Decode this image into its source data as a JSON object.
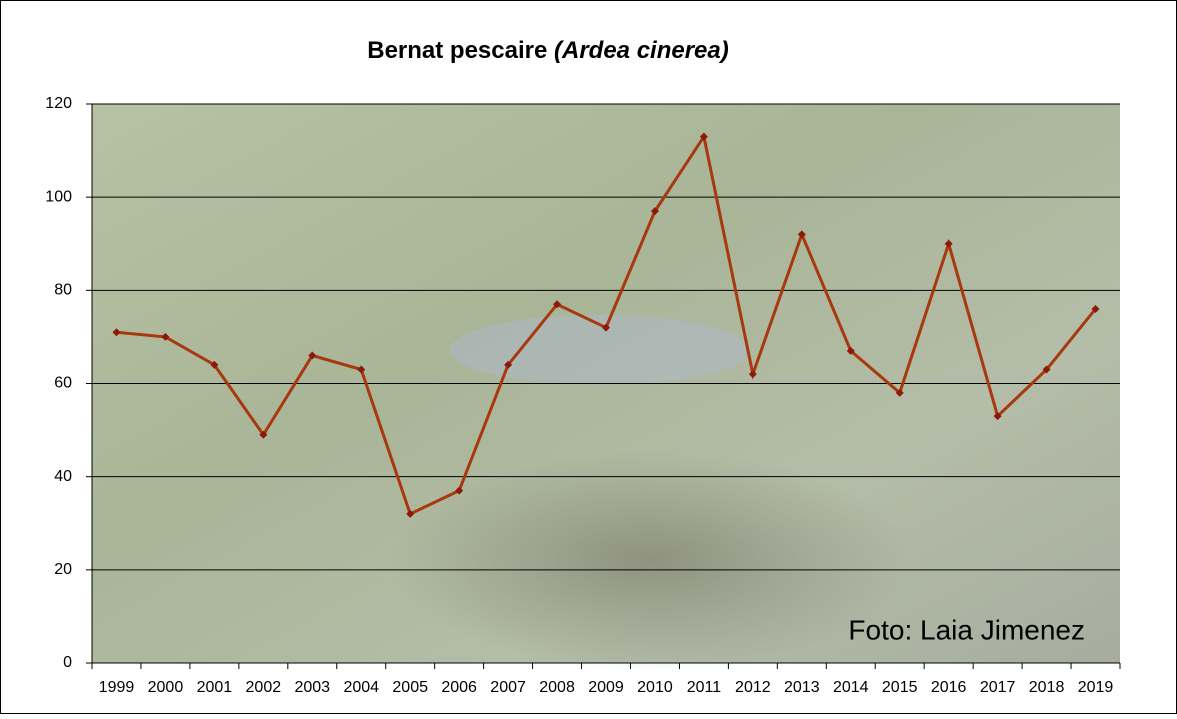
{
  "chart_data": {
    "type": "line",
    "title": "Bernat pescaire",
    "title_species": "(Ardea cinerea)",
    "annotation": "Foto: Laia Jimenez",
    "categories": [
      "1999",
      "2000",
      "2001",
      "2002",
      "2003",
      "2004",
      "2005",
      "2006",
      "2007",
      "2008",
      "2009",
      "2010",
      "2011",
      "2012",
      "2013",
      "2014",
      "2015",
      "2016",
      "2017",
      "2018",
      "2019"
    ],
    "values": [
      71,
      70,
      64,
      49,
      66,
      63,
      32,
      37,
      64,
      77,
      72,
      97,
      113,
      62,
      92,
      67,
      58,
      90,
      53,
      63,
      76
    ],
    "color": "#a8380e",
    "marker_color": "#8b1a0a",
    "ylim": [
      0,
      120
    ],
    "yticks": [
      0,
      20,
      40,
      60,
      80,
      100,
      120
    ],
    "grid": true
  }
}
